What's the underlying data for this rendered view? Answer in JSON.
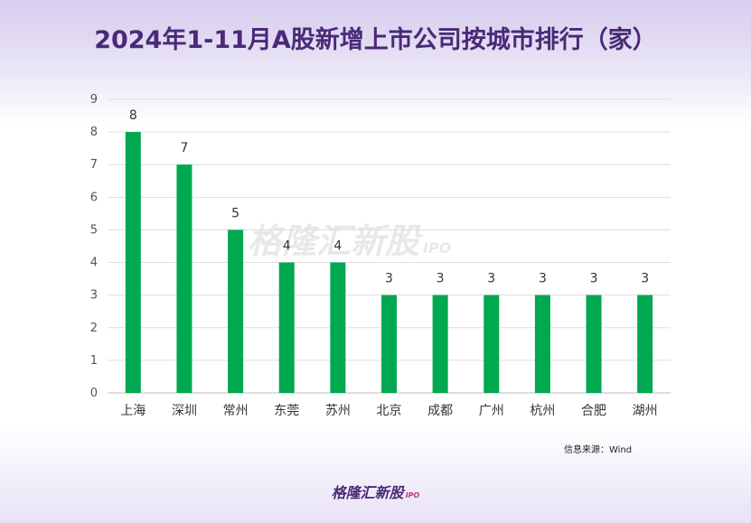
{
  "page": {
    "title": "2024年1-11月A股新增上市公司按城市排行（家）",
    "source": "信息来源：Wind",
    "brand": "格隆汇新股",
    "brand_suffix": "IPO",
    "watermark": "格隆汇新股",
    "watermark_suffix": "IPO"
  },
  "chart_data": {
    "type": "bar",
    "title": "2024年1-11月A股新增上市公司按城市排行（家）",
    "xlabel": "",
    "ylabel": "",
    "categories": [
      "上海",
      "深圳",
      "常州",
      "东莞",
      "苏州",
      "北京",
      "成都",
      "广州",
      "杭州",
      "合肥",
      "湖州"
    ],
    "values": [
      8,
      7,
      5,
      4,
      4,
      3,
      3,
      3,
      3,
      3,
      3
    ],
    "ylim": [
      0,
      9
    ],
    "yticks": [
      0,
      1,
      2,
      3,
      4,
      5,
      6,
      7,
      8,
      9
    ],
    "grid": true,
    "data_labels": true,
    "bar_color": "#00a850"
  }
}
